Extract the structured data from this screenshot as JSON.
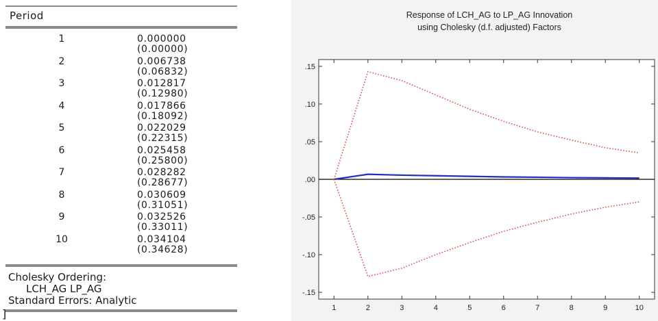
{
  "table": {
    "header": "Period",
    "rows": [
      {
        "period": "1",
        "value": "0.000000",
        "se": "(0.00000)"
      },
      {
        "period": "2",
        "value": "0.006738",
        "se": "(0.06832)"
      },
      {
        "period": "3",
        "value": "0.012817",
        "se": "(0.12980)"
      },
      {
        "period": "4",
        "value": "0.017866",
        "se": "(0.18092)"
      },
      {
        "period": "5",
        "value": "0.022029",
        "se": "(0.22315)"
      },
      {
        "period": "6",
        "value": "0.025458",
        "se": "(0.25800)"
      },
      {
        "period": "7",
        "value": "0.028282",
        "se": "(0.28677)"
      },
      {
        "period": "8",
        "value": "0.030609",
        "se": "(0.31051)"
      },
      {
        "period": "9",
        "value": "0.032526",
        "se": "(0.33011)"
      },
      {
        "period": "10",
        "value": "0.034104",
        "se": "(0.34628)"
      }
    ],
    "footer": {
      "ordering_label": "Cholesky Ordering:",
      "ordering_vars": "LCH_AG LP_AG",
      "standard_errors": "Standard Errors: Analytic"
    },
    "stray_mark": "]"
  },
  "chart_data": {
    "type": "line",
    "title": [
      "Response of LCH_AG to LP_AG Innovation",
      "using Cholesky (d.f. adjusted) Factors"
    ],
    "x": [
      1,
      2,
      3,
      4,
      5,
      6,
      7,
      8,
      9,
      10
    ],
    "x_tick_labels": [
      "1",
      "2",
      "3",
      "4",
      "5",
      "6",
      "7",
      "8",
      "9",
      "10"
    ],
    "y_tick_labels": [
      ".15",
      ".10",
      ".05",
      ".00",
      "-.05",
      "-.10",
      "-.15"
    ],
    "y_ticks": [
      0.15,
      0.1,
      0.05,
      0.0,
      -0.05,
      -0.1,
      -0.15
    ],
    "ylim": [
      -0.15,
      0.15
    ],
    "zero_line": true,
    "grid": false,
    "series": [
      {
        "style": "solid",
        "color": "#1f2fbf",
        "values": [
          0.0,
          0.0067,
          0.0055,
          0.0048,
          0.004,
          0.0032,
          0.0028,
          0.0022,
          0.0019,
          0.0016
        ]
      },
      {
        "style": "dotted",
        "color": "#e8413c",
        "values": [
          0.0,
          0.143,
          0.131,
          0.112,
          0.093,
          0.077,
          0.063,
          0.052,
          0.042,
          0.035
        ]
      },
      {
        "style": "dotted",
        "color": "#e8413c",
        "values": [
          0.0,
          -0.129,
          -0.118,
          -0.1,
          -0.084,
          -0.069,
          -0.057,
          -0.046,
          -0.037,
          -0.03
        ]
      }
    ]
  }
}
